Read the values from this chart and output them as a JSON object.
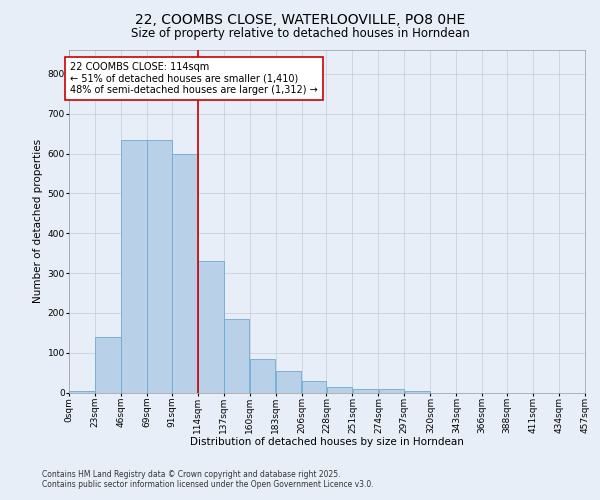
{
  "title": "22, COOMBS CLOSE, WATERLOOVILLE, PO8 0HE",
  "subtitle": "Size of property relative to detached houses in Horndean",
  "xlabel": "Distribution of detached houses by size in Horndean",
  "ylabel": "Number of detached properties",
  "bin_labels": [
    "0sqm",
    "23sqm",
    "46sqm",
    "69sqm",
    "91sqm",
    "114sqm",
    "137sqm",
    "160sqm",
    "183sqm",
    "206sqm",
    "228sqm",
    "251sqm",
    "274sqm",
    "297sqm",
    "320sqm",
    "343sqm",
    "366sqm",
    "388sqm",
    "411sqm",
    "434sqm",
    "457sqm"
  ],
  "bar_heights": [
    5,
    140,
    635,
    635,
    600,
    330,
    185,
    85,
    55,
    30,
    15,
    8,
    8,
    5,
    0,
    0,
    0,
    0,
    0,
    0
  ],
  "bin_edges": [
    0,
    23,
    46,
    69,
    91,
    114,
    137,
    160,
    183,
    206,
    228,
    251,
    274,
    297,
    320,
    343,
    366,
    388,
    411,
    434,
    457
  ],
  "bar_color": "#b8d0e8",
  "bar_edge_color": "#6aaad4",
  "red_line_x": 114,
  "annotation_text": "22 COOMBS CLOSE: 114sqm\n← 51% of detached houses are smaller (1,410)\n48% of semi-detached houses are larger (1,312) →",
  "annotation_box_color": "#ffffff",
  "annotation_box_edge": "#cc0000",
  "ylim": [
    0,
    860
  ],
  "yticks": [
    0,
    100,
    200,
    300,
    400,
    500,
    600,
    700,
    800
  ],
  "background_color": "#e8eef7",
  "plot_background": "#e8eef7",
  "footer_line1": "Contains HM Land Registry data © Crown copyright and database right 2025.",
  "footer_line2": "Contains public sector information licensed under the Open Government Licence v3.0.",
  "title_fontsize": 10,
  "subtitle_fontsize": 8.5,
  "label_fontsize": 7.5,
  "tick_fontsize": 6.5,
  "annotation_fontsize": 7
}
